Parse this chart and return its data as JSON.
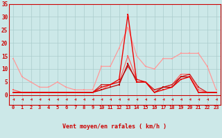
{
  "x": [
    0,
    1,
    2,
    3,
    4,
    5,
    6,
    7,
    8,
    9,
    10,
    11,
    12,
    13,
    14,
    15,
    16,
    17,
    18,
    19,
    20,
    21,
    22,
    23
  ],
  "series1": [
    14,
    7,
    5,
    3,
    3,
    5,
    3,
    2,
    2,
    2,
    11,
    11,
    18,
    26,
    15,
    11,
    10,
    14,
    14,
    16,
    16,
    16,
    11,
    2
  ],
  "series2": [
    1,
    1,
    1,
    1,
    1,
    1,
    1,
    1,
    1,
    1,
    2,
    3,
    4,
    12,
    5,
    5,
    1,
    3,
    3,
    7,
    7,
    1,
    1,
    1
  ],
  "series3": [
    2,
    1,
    1,
    1,
    1,
    1,
    1,
    1,
    1,
    1,
    2,
    4,
    5,
    15,
    6,
    5,
    2,
    3,
    4,
    8,
    8,
    2,
    1,
    1
  ],
  "series4": [
    1,
    1,
    1,
    1,
    1,
    1,
    1,
    1,
    1,
    1,
    3,
    4,
    6,
    31,
    5,
    5,
    1,
    2,
    3,
    6,
    7,
    1,
    1,
    1
  ],
  "series5": [
    1,
    1,
    1,
    1,
    1,
    1,
    1,
    1,
    1,
    1,
    4,
    4,
    5,
    11,
    6,
    5,
    2,
    3,
    4,
    7,
    8,
    3,
    1,
    1
  ],
  "xlabel": "Vent moyen/en rafales ( km/h )",
  "yticks": [
    0,
    5,
    10,
    15,
    20,
    25,
    30,
    35
  ],
  "bg_color": "#cce8e8",
  "grid_color": "#aacccc",
  "color_light_pink": "#ff9999",
  "color_pink": "#ff6666",
  "color_dark_red": "#bb0000",
  "color_red": "#ee0000",
  "color_medium_red": "#cc2222",
  "axis_color": "#cc0000"
}
